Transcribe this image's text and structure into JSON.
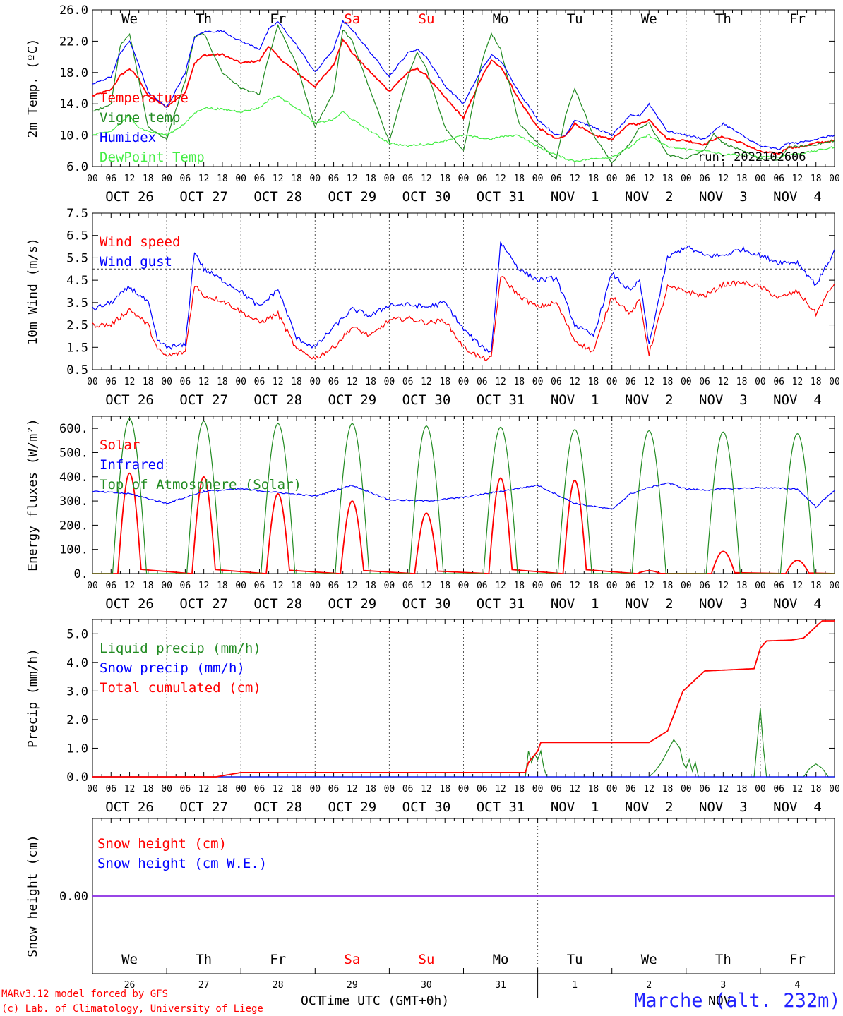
{
  "weekdays": [
    {
      "label": "We",
      "color": "#000000"
    },
    {
      "label": "Th",
      "color": "#000000"
    },
    {
      "label": "Fr",
      "color": "#000000"
    },
    {
      "label": "Sa",
      "color": "#ff0000"
    },
    {
      "label": "Su",
      "color": "#ff0000"
    },
    {
      "label": "Mo",
      "color": "#000000"
    },
    {
      "label": "Tu",
      "color": "#000000"
    },
    {
      "label": "We",
      "color": "#000000"
    },
    {
      "label": "Th",
      "color": "#000000"
    },
    {
      "label": "Fr",
      "color": "#000000"
    }
  ],
  "dates": [
    "OCT 26",
    "OCT 27",
    "OCT 28",
    "OCT 29",
    "OCT 30",
    "OCT 31",
    "NOV  1",
    "NOV  2",
    "NOV  3",
    "NOV  4"
  ],
  "hour_ticks": [
    "00",
    "06",
    "12",
    "18"
  ],
  "run_label": "run: 2022102606",
  "bottom_days": [
    "26",
    "27",
    "28",
    "29",
    "30",
    "31",
    "1",
    "2",
    "3",
    "4"
  ],
  "bottom_month_left": "OCT",
  "bottom_month_right": "NOV",
  "xaxis_label": "Time UTC (GMT+0h)",
  "credit_line1": "MARv3.12 model forced by GFS",
  "credit_line2": "(c) Lab. of Climatology, University of Liege",
  "station_label": "Marche (alt. 232m)",
  "chart_data": [
    {
      "type": "line",
      "ylabel": "2m Temp. (ºC)",
      "ylim": [
        6.0,
        26.0
      ],
      "yticks": [
        "6.0",
        "10.0",
        "14.0",
        "18.0",
        "22.0",
        "26.0"
      ],
      "x": [
        0,
        6,
        9,
        12,
        15,
        18,
        24,
        30,
        33,
        36,
        42,
        48,
        54,
        57,
        60,
        66,
        72,
        78,
        81,
        84,
        90,
        96,
        102,
        105,
        108,
        114,
        120,
        126,
        129,
        132,
        138,
        144,
        150,
        153,
        156,
        162,
        168,
        174,
        177,
        180,
        186,
        192,
        198,
        201,
        204,
        210,
        216,
        222,
        225,
        228,
        234,
        240
      ],
      "series": [
        {
          "name": "Temperature",
          "color": "#ff0000",
          "values": [
            15.0,
            15.8,
            17.6,
            18.5,
            17.2,
            15.0,
            13.6,
            15.5,
            19.2,
            20.2,
            20.3,
            19.2,
            19.5,
            21.4,
            20.0,
            18.0,
            16.2,
            19.0,
            22.3,
            20.5,
            18.0,
            15.6,
            18.0,
            18.5,
            17.6,
            14.8,
            12.2,
            17.5,
            19.5,
            18.8,
            14.5,
            11.0,
            9.5,
            9.9,
            11.5,
            10.0,
            9.5,
            11.5,
            11.4,
            12.0,
            9.5,
            9.3,
            8.8,
            9.5,
            9.8,
            9.0,
            7.9,
            7.6,
            8.5,
            8.4,
            9.0,
            9.3
          ]
        },
        {
          "name": "Vigne temp",
          "color": "#228b22",
          "values": [
            13.0,
            14.0,
            21.5,
            23.0,
            17.0,
            11.0,
            9.5,
            17.0,
            22.5,
            23.0,
            18.0,
            16.0,
            15.2,
            20.0,
            24.0,
            19.0,
            11.0,
            15.5,
            23.5,
            22.0,
            15.5,
            9.2,
            17.5,
            20.5,
            18.5,
            11.0,
            8.0,
            19.5,
            23.0,
            21.0,
            11.5,
            9.0,
            7.0,
            12.5,
            16.0,
            10.0,
            6.5,
            9.0,
            11.0,
            11.5,
            7.5,
            7.0,
            8.2,
            10.2,
            9.0,
            8.0,
            7.0,
            6.8,
            8.5,
            8.5,
            8.8,
            9.3
          ]
        },
        {
          "name": "Humidex",
          "color": "#0000ff",
          "values": [
            16.5,
            17.5,
            20.5,
            22.0,
            19.0,
            15.5,
            13.5,
            18.0,
            22.5,
            23.2,
            23.3,
            22.0,
            21.0,
            23.5,
            24.5,
            21.5,
            18.0,
            21.0,
            24.5,
            23.5,
            20.5,
            17.5,
            20.5,
            21.0,
            20.0,
            16.3,
            14.0,
            18.5,
            20.2,
            19.5,
            15.5,
            12.0,
            10.0,
            10.0,
            12.0,
            11.0,
            10.0,
            12.5,
            12.5,
            14.0,
            10.5,
            10.0,
            9.5,
            10.5,
            11.5,
            10.0,
            8.6,
            8.2,
            9.0,
            9.0,
            9.5,
            10.0
          ]
        },
        {
          "name": "DewPoint Temp",
          "color": "#44ee44",
          "values": [
            10.0,
            10.5,
            11.5,
            12.5,
            11.0,
            10.5,
            10.0,
            11.5,
            12.8,
            13.5,
            13.3,
            13.0,
            13.5,
            14.5,
            15.0,
            13.5,
            11.5,
            12.0,
            13.0,
            12.0,
            10.5,
            9.0,
            8.6,
            8.8,
            8.8,
            9.3,
            10.0,
            9.6,
            9.5,
            9.8,
            10.0,
            8.5,
            7.5,
            7.0,
            6.7,
            7.0,
            7.2,
            8.5,
            9.5,
            10.0,
            8.5,
            8.2,
            8.0,
            7.8,
            7.5,
            7.5,
            7.3,
            7.2,
            7.5,
            7.6,
            8.0,
            8.5
          ]
        }
      ]
    },
    {
      "type": "line",
      "ylabel": "10m Wind (m/s)",
      "ylim": [
        0.5,
        7.5
      ],
      "yticks": [
        "0.5",
        "1.5",
        "2.5",
        "3.5",
        "4.5",
        "5.5",
        "6.5",
        "7.5"
      ],
      "reference_line": 5.0,
      "x": [
        0,
        6,
        12,
        18,
        21,
        24,
        30,
        33,
        36,
        42,
        48,
        54,
        60,
        66,
        72,
        78,
        84,
        90,
        96,
        102,
        108,
        114,
        120,
        126,
        129,
        132,
        138,
        144,
        150,
        156,
        162,
        168,
        174,
        177,
        180,
        186,
        192,
        198,
        204,
        210,
        216,
        222,
        228,
        234,
        240
      ],
      "series": [
        {
          "name": "Wind speed",
          "color": "#ff0000",
          "values": [
            2.5,
            2.5,
            3.2,
            2.5,
            1.4,
            1.1,
            1.3,
            4.3,
            3.8,
            3.6,
            3.1,
            2.6,
            3.0,
            1.4,
            1.0,
            1.5,
            2.4,
            2.0,
            2.7,
            2.8,
            2.6,
            2.7,
            1.5,
            1.0,
            1.0,
            4.7,
            3.8,
            3.3,
            3.5,
            1.8,
            1.3,
            3.8,
            3.0,
            3.6,
            1.2,
            4.2,
            4.0,
            3.8,
            4.3,
            4.4,
            4.2,
            3.7,
            4.0,
            3.0,
            4.4
          ]
        },
        {
          "name": "Wind gust",
          "color": "#0000ff",
          "values": [
            3.2,
            3.5,
            4.2,
            3.5,
            1.8,
            1.5,
            1.6,
            5.8,
            5.0,
            4.5,
            4.0,
            3.3,
            4.1,
            1.9,
            1.5,
            2.4,
            3.2,
            2.9,
            3.4,
            3.4,
            3.3,
            3.5,
            2.3,
            1.5,
            1.3,
            6.2,
            5.0,
            4.5,
            4.6,
            2.5,
            2.0,
            4.8,
            4.0,
            4.5,
            1.6,
            5.5,
            6.0,
            5.6,
            5.6,
            5.9,
            5.6,
            5.3,
            5.3,
            4.3,
            5.8
          ]
        }
      ]
    },
    {
      "type": "area",
      "ylabel": "Energy fluxes (W/m²)",
      "ylim": [
        0,
        650
      ],
      "yticks": [
        "0.",
        "100.",
        "200.",
        "300.",
        "400.",
        "500.",
        "600."
      ],
      "series": [
        {
          "name": "Solar",
          "color": "#ff0000",
          "daily_peaks": [
            415,
            400,
            330,
            300,
            250,
            395,
            385,
            12,
            92,
            55
          ]
        },
        {
          "name": "Infrared",
          "color": "#0000ff",
          "x": [
            0,
            12,
            24,
            36,
            48,
            60,
            72,
            84,
            96,
            108,
            120,
            132,
            144,
            156,
            168,
            174,
            180,
            186,
            192,
            198,
            204,
            216,
            228,
            234,
            240
          ],
          "values": [
            340,
            330,
            290,
            340,
            350,
            335,
            320,
            365,
            305,
            300,
            315,
            340,
            365,
            290,
            265,
            330,
            355,
            375,
            350,
            345,
            350,
            355,
            350,
            275,
            345
          ]
        },
        {
          "name": "Top of Atmosphere (Solar)",
          "color": "#228b22",
          "daily_peaks": [
            640,
            630,
            620,
            620,
            610,
            605,
            595,
            590,
            585,
            578
          ]
        }
      ]
    },
    {
      "type": "line",
      "ylabel": "Precip (mm/h)",
      "ylim": [
        0.0,
        5.5
      ],
      "yticks": [
        "0.0",
        "1.0",
        "2.0",
        "3.0",
        "4.0",
        "5.0"
      ],
      "series": [
        {
          "name": "Liquid precip (mm/h)",
          "color": "#228b22",
          "x": [
            140,
            141,
            142,
            143,
            144,
            145,
            146,
            147,
            148,
            170,
            180,
            182,
            184,
            186,
            188,
            190,
            191,
            192,
            193,
            194,
            195,
            196,
            200,
            214,
            215,
            216,
            217,
            218,
            219,
            230,
            232,
            234,
            236,
            238,
            240
          ],
          "values": [
            0,
            0.9,
            0.5,
            0.8,
            0.6,
            0.9,
            0.3,
            0,
            0,
            0,
            0,
            0.2,
            0.5,
            0.9,
            1.3,
            1.0,
            0.5,
            0.3,
            0.6,
            0.2,
            0.5,
            0,
            0,
            0,
            1.2,
            2.4,
            1.0,
            0,
            0,
            0,
            0.3,
            0.45,
            0.3,
            0,
            0
          ]
        },
        {
          "name": "Snow precip (mm/h)",
          "color": "#0000ff",
          "x": [
            0,
            240
          ],
          "values": [
            0,
            0
          ]
        },
        {
          "name": "Total cumulated (cm)",
          "color": "#ff0000",
          "x": [
            0,
            40,
            48,
            140,
            141,
            144,
            145,
            152,
            180,
            186,
            191,
            198,
            214,
            216,
            218,
            226,
            230,
            236,
            240
          ],
          "values": [
            0,
            0,
            0.15,
            0.15,
            0.5,
            0.9,
            1.2,
            1.2,
            1.2,
            1.6,
            3.0,
            3.7,
            3.78,
            4.5,
            4.75,
            4.78,
            4.85,
            5.45,
            5.45
          ]
        }
      ]
    },
    {
      "type": "line",
      "ylabel": "Snow height (cm)",
      "ylim": [
        -1,
        1
      ],
      "yticks": [
        "0.00"
      ],
      "series": [
        {
          "name": "Snow height (cm)",
          "color": "#ff0000",
          "x": [
            0,
            240
          ],
          "values": [
            0,
            0
          ]
        },
        {
          "name": "Snow height (cm W.E.)",
          "color": "#0000ff",
          "x": [
            0,
            240
          ],
          "values": [
            0,
            0
          ]
        }
      ]
    }
  ]
}
